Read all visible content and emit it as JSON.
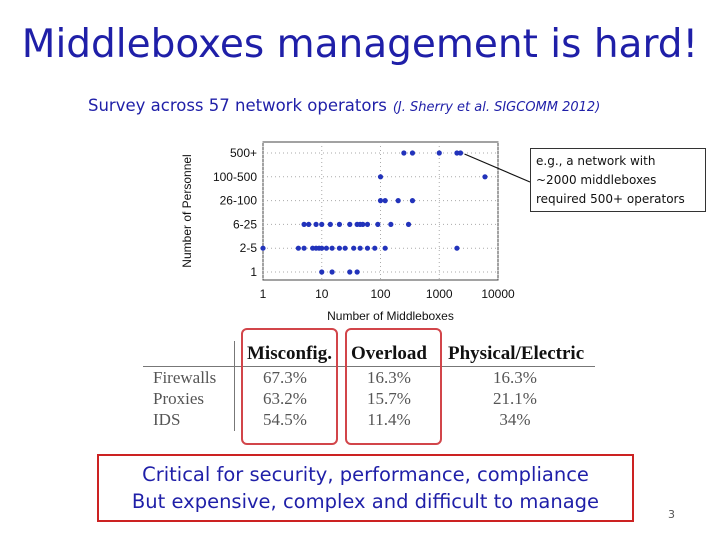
{
  "slide": {
    "title": "Middleboxes management is hard!",
    "subtitle": "Survey across 57 network operators",
    "citation": "(J. Sherry et al. SIGCOMM 2012)",
    "callout": [
      "e.g., a network with",
      "~2000 middleboxes",
      "required 500+ operators"
    ],
    "bottom_lines": [
      "Critical for security, performance, compliance",
      "But expensive, complex and difficult to manage"
    ],
    "page_number": "3"
  },
  "chart_data": {
    "type": "scatter",
    "xlabel": "Number of Middleboxes",
    "ylabel": "Number of Personnel",
    "x_scale": "log",
    "x_ticks": [
      "1",
      "10",
      "100",
      "1000",
      "10000"
    ],
    "y_categories": [
      "1",
      "2-5",
      "6-25",
      "26-100",
      "100-500",
      "500+"
    ],
    "grid": true,
    "points": [
      {
        "x": 1000,
        "y": "500+"
      },
      {
        "x": 2000,
        "y": "500+"
      },
      {
        "x": 250,
        "y": "500+"
      },
      {
        "x": 350,
        "y": "500+"
      },
      {
        "x": 2300,
        "y": "500+"
      },
      {
        "x": 100,
        "y": "100-500"
      },
      {
        "x": 6000,
        "y": "100-500"
      },
      {
        "x": 100,
        "y": "26-100"
      },
      {
        "x": 120,
        "y": "26-100"
      },
      {
        "x": 200,
        "y": "26-100"
      },
      {
        "x": 350,
        "y": "26-100"
      },
      {
        "x": 5,
        "y": "6-25"
      },
      {
        "x": 6,
        "y": "6-25"
      },
      {
        "x": 8,
        "y": "6-25"
      },
      {
        "x": 10,
        "y": "6-25"
      },
      {
        "x": 14,
        "y": "6-25"
      },
      {
        "x": 20,
        "y": "6-25"
      },
      {
        "x": 30,
        "y": "6-25"
      },
      {
        "x": 40,
        "y": "6-25"
      },
      {
        "x": 45,
        "y": "6-25"
      },
      {
        "x": 50,
        "y": "6-25"
      },
      {
        "x": 60,
        "y": "6-25"
      },
      {
        "x": 90,
        "y": "6-25"
      },
      {
        "x": 150,
        "y": "6-25"
      },
      {
        "x": 300,
        "y": "6-25"
      },
      {
        "x": 1,
        "y": "2-5"
      },
      {
        "x": 4,
        "y": "2-5"
      },
      {
        "x": 5,
        "y": "2-5"
      },
      {
        "x": 7,
        "y": "2-5"
      },
      {
        "x": 8,
        "y": "2-5"
      },
      {
        "x": 9,
        "y": "2-5"
      },
      {
        "x": 10,
        "y": "2-5"
      },
      {
        "x": 12,
        "y": "2-5"
      },
      {
        "x": 15,
        "y": "2-5"
      },
      {
        "x": 20,
        "y": "2-5"
      },
      {
        "x": 25,
        "y": "2-5"
      },
      {
        "x": 35,
        "y": "2-5"
      },
      {
        "x": 45,
        "y": "2-5"
      },
      {
        "x": 60,
        "y": "2-5"
      },
      {
        "x": 80,
        "y": "2-5"
      },
      {
        "x": 120,
        "y": "2-5"
      },
      {
        "x": 2000,
        "y": "2-5"
      },
      {
        "x": 10,
        "y": "1"
      },
      {
        "x": 15,
        "y": "1"
      },
      {
        "x": 30,
        "y": "1"
      },
      {
        "x": 40,
        "y": "1"
      }
    ]
  },
  "table": {
    "headers": [
      "Misconfig.",
      "Overload",
      "Physical/Electric"
    ],
    "rows": [
      {
        "label": "Firewalls",
        "values": [
          "67.3%",
          "16.3%",
          "16.3%"
        ]
      },
      {
        "label": "Proxies",
        "values": [
          "63.2%",
          "15.7%",
          "21.1%"
        ]
      },
      {
        "label": "IDS",
        "values": [
          "54.5%",
          "11.4%",
          "34%"
        ]
      }
    ]
  }
}
